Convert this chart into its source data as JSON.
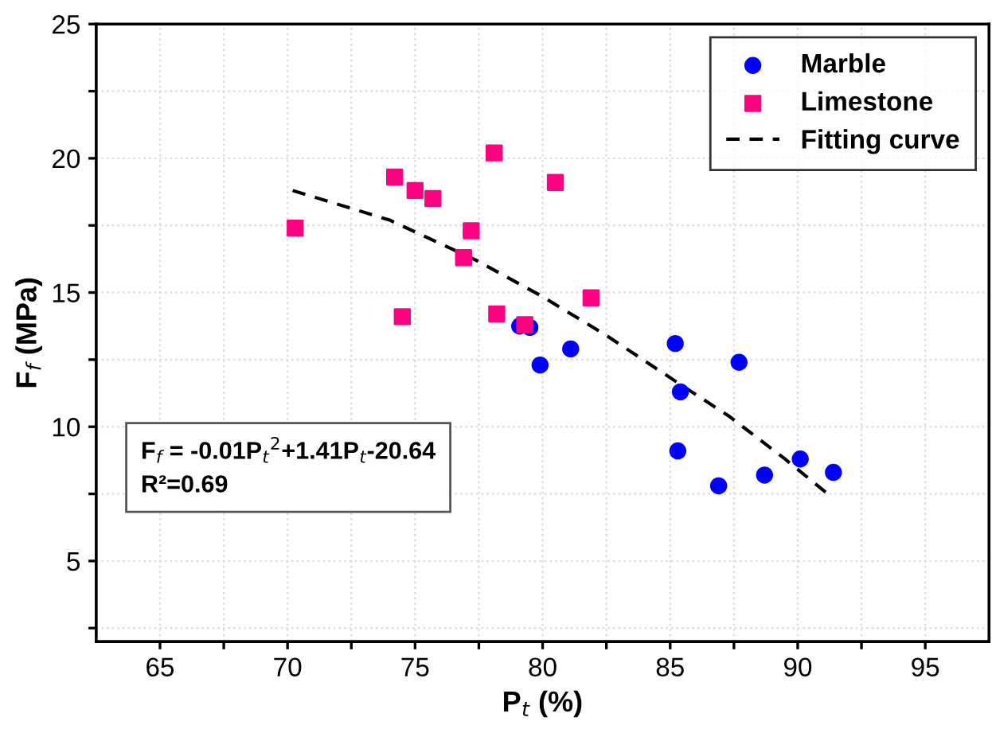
{
  "chart_data": {
    "type": "scatter",
    "xlabel": "P$_{t}$ (%)",
    "ylabel": "F$_{f}$ (MPa)",
    "xlim": [
      62.5,
      97.5
    ],
    "ylim": [
      2,
      25
    ],
    "xticks": [
      65,
      {
        "value": 67.5,
        "label": null
      },
      70,
      {
        "value": 72.5,
        "label": null
      },
      75,
      {
        "value": 77.5,
        "label": null
      },
      80,
      {
        "value": 82.5,
        "label": null
      },
      85,
      {
        "value": 87.5,
        "label": null
      },
      90,
      {
        "value": 92.5,
        "label": null
      },
      95
    ],
    "yticks": [
      {
        "value": 2.5,
        "label": null
      },
      5,
      {
        "value": 7.5,
        "label": null
      },
      10,
      {
        "value": 12.5,
        "label": null
      },
      15,
      {
        "value": 17.5,
        "label": null
      },
      20,
      {
        "value": 22.5,
        "label": null
      },
      25
    ],
    "grid": true,
    "legend": "top right",
    "series": [
      {
        "name": "Marble",
        "marker": "circle",
        "color": "#0000ff",
        "x": [
          79.1,
          79.5,
          79.9,
          81.1,
          85.2,
          85.4,
          87.7,
          85.3,
          86.9,
          88.7,
          90.1,
          91.4
        ],
        "values": [
          13.75,
          13.7,
          12.3,
          12.9,
          13.1,
          11.3,
          12.4,
          9.1,
          7.8,
          8.2,
          8.8,
          8.3
        ]
      },
      {
        "name": "Limestone",
        "marker": "square",
        "color": "#ff0080",
        "x": [
          70.3,
          74.2,
          75.0,
          75.7,
          77.2,
          76.9,
          78.1,
          80.5,
          74.5,
          78.2,
          79.3,
          81.9
        ],
        "values": [
          17.4,
          19.3,
          18.8,
          18.5,
          17.3,
          16.3,
          20.2,
          19.1,
          14.1,
          14.2,
          13.8,
          14.8
        ]
      },
      {
        "name": "Fitting curve",
        "type": "line",
        "marker": "none",
        "line_style": "dashed",
        "color": "#000000",
        "x": [
          70.2,
          74,
          77.4,
          79.9,
          82.5,
          85.2,
          87.3,
          89.5,
          91.3
        ],
        "values": [
          18.8,
          17.7,
          16.2,
          14.9,
          13.4,
          11.7,
          10.4,
          8.8,
          7.4
        ]
      }
    ],
    "annotations": [
      "F$_{f}$ = -0.01P$_{t}$$^{2}$+1.41P$_{t}$-20.64\nR²=0.69"
    ]
  }
}
